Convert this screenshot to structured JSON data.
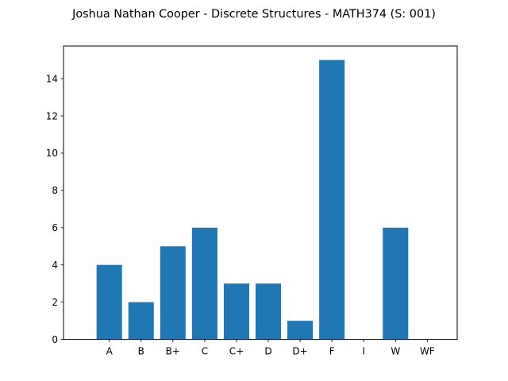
{
  "chart_data": {
    "type": "bar",
    "title": "Joshua Nathan Cooper - Discrete Structures - MATH374 (S: 001)",
    "xlabel": "",
    "ylabel": "",
    "categories": [
      "A",
      "B",
      "B+",
      "C",
      "C+",
      "D",
      "D+",
      "F",
      "I",
      "W",
      "WF"
    ],
    "values": [
      4,
      2,
      5,
      6,
      3,
      3,
      1,
      15,
      0,
      6,
      0
    ],
    "ylim": [
      0,
      15.75
    ],
    "yticks": [
      0,
      2,
      4,
      6,
      8,
      10,
      12,
      14
    ],
    "grid": false,
    "bar_color": "#1f77b4"
  }
}
